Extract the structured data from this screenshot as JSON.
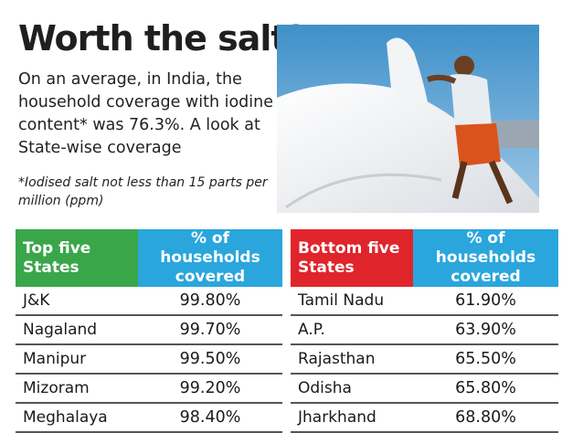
{
  "title": "Worth the salt?",
  "intro": "On an average, in India, the household coverage with iodine content* was 76.3%. A look at State-wise coverage",
  "footnote": "*Iodised salt not less than 15 parts per million (ppm)",
  "colors": {
    "top_header": "#3aa64a",
    "bottom_header": "#e0242c",
    "value_header": "#2aa6dd"
  },
  "top_table": {
    "header_state": "Top five States",
    "header_value": "% of households covered",
    "rows": [
      {
        "state": "J&K",
        "value": "99.80%"
      },
      {
        "state": "Nagaland",
        "value": "99.70%"
      },
      {
        "state": "Manipur",
        "value": "99.50%"
      },
      {
        "state": "Mizoram",
        "value": "99.20%"
      },
      {
        "state": "Meghalaya",
        "value": "98.40%"
      }
    ]
  },
  "bottom_table": {
    "header_state": "Bottom five States",
    "header_value": "% of households covered",
    "rows": [
      {
        "state": "Tamil Nadu",
        "value": "61.90%"
      },
      {
        "state": "A.P.",
        "value": "63.90%"
      },
      {
        "state": "Rajasthan",
        "value": "65.50%"
      },
      {
        "state": "Odisha",
        "value": "65.80%"
      },
      {
        "state": "Jharkhand",
        "value": "68.80%"
      }
    ]
  }
}
